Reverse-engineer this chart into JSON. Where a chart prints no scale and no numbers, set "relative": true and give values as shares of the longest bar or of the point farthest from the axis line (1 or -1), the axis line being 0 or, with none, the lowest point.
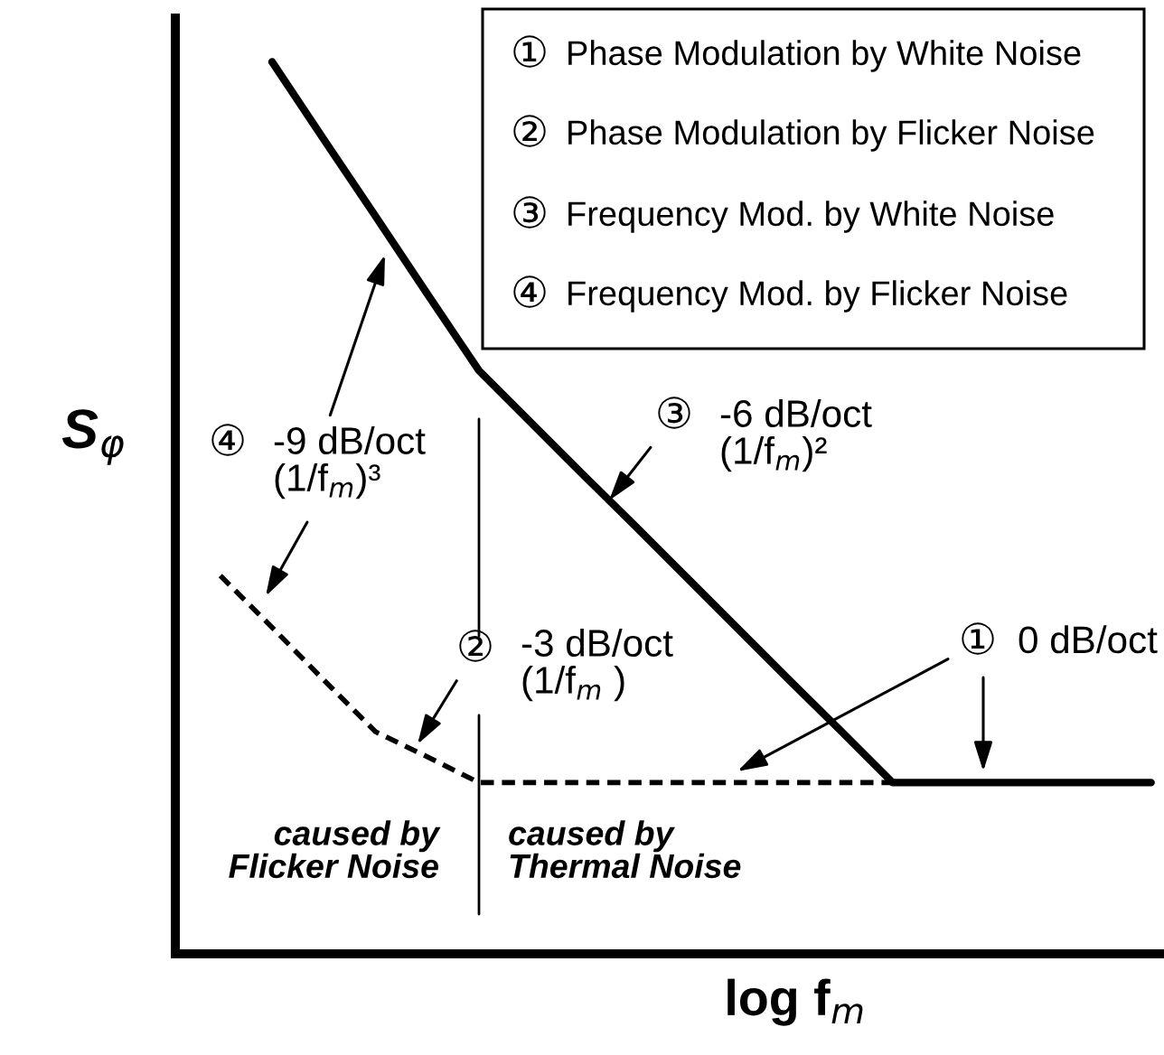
{
  "chart_data": {
    "type": "line",
    "relative": true,
    "xlabel": "log f$_{m}$",
    "ylabel": "S$_{φ}$",
    "categories": [
      null,
      null,
      null,
      null,
      null,
      null,
      null,
      null,
      null,
      null,
      null,
      null,
      null,
      null,
      null,
      null,
      null,
      null,
      null
    ],
    "series": [
      {
        "color": "#000000",
        "line_style": "solid",
        "values": [
          null,
          1,
          0.913,
          0.827,
          0.74,
          0.654,
          0.596,
          0.538,
          0.481,
          0.423,
          0.365,
          0.307,
          0.25,
          0.192,
          0.192,
          0.192,
          0.192,
          0.192,
          0.192
        ]
      },
      {
        "color": "#000000",
        "line_style": "dashed",
        "values": [
          0.424,
          0.366,
          0.307,
          0.249,
          0.221,
          0.192,
          0.192,
          0.192,
          0.192,
          0.192,
          0.192,
          0.192,
          0.192,
          0.192,
          null,
          null,
          null,
          null,
          null
        ]
      }
    ],
    "annotations": [
      "①",
      "Phase Modulation by White Noise",
      "②",
      "Phase Modulation by Flicker Noise",
      "③",
      "Frequency Mod. by White Noise",
      "④",
      "Frequency Mod. by Flicker Noise",
      "④",
      "-9 dB/oct\n(1/f$_{m}$)³",
      "③",
      "-6 dB/oct\n(1/f$_{m}$)²",
      "②",
      "-3 dB/oct\n(1/f$_{m}$ )",
      "①",
      "0 dB/oct",
      "caused by\nFlicker Noise",
      "caused by\nThermal Noise"
    ]
  }
}
